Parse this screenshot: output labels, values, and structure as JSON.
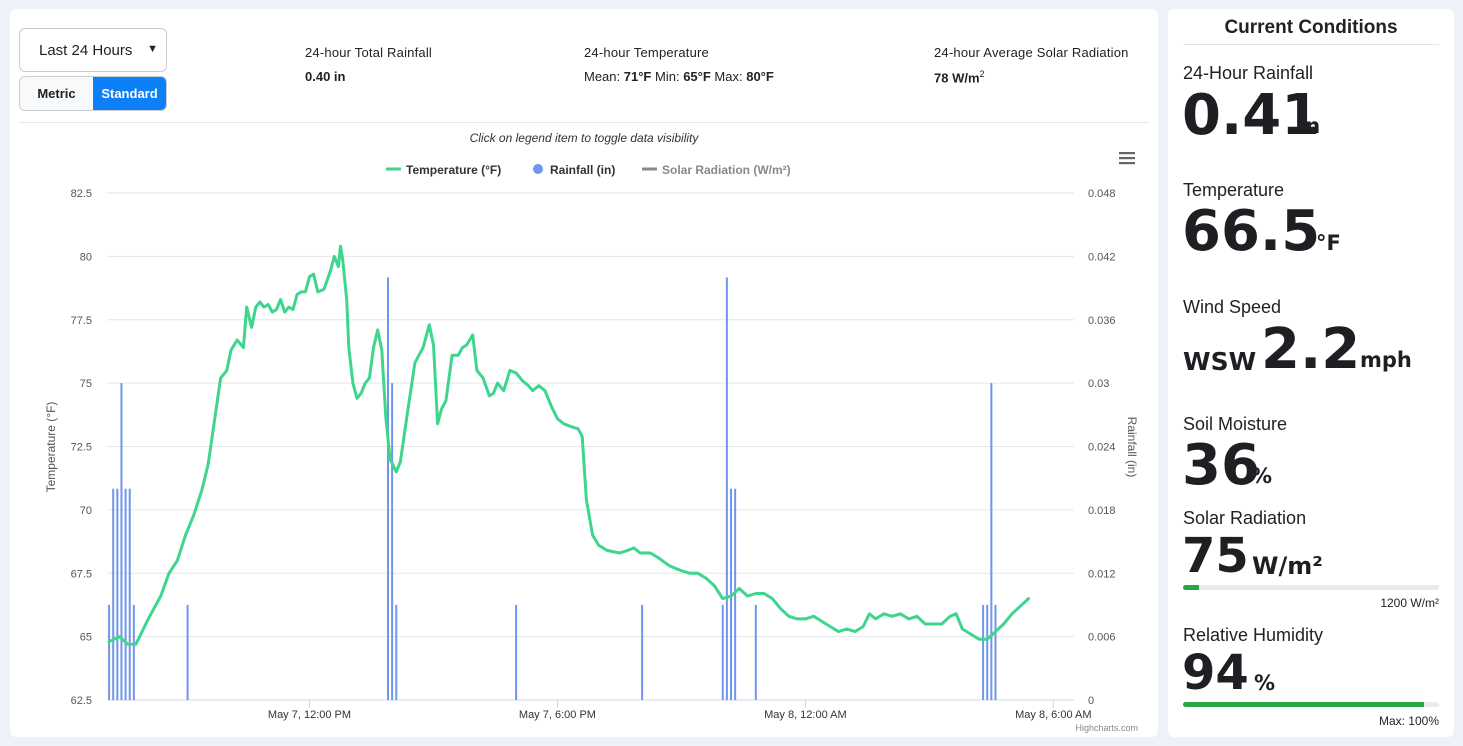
{
  "controls": {
    "range_value": "Last 24 Hours",
    "unit_metric": "Metric",
    "unit_standard": "Standard",
    "active_unit": "Standard"
  },
  "summary": {
    "rain_label": "24-hour Total Rainfall",
    "rain_value": "0.40 in",
    "temp_label": "24-hour Temperature",
    "temp_mean_label": "Mean:",
    "temp_mean": "71°F",
    "temp_min_label": "Min:",
    "temp_min": "65°F",
    "temp_max_label": "Max:",
    "temp_max": "80°F",
    "solar_label": "24-hour Average Solar Radiation",
    "solar_value": "78 W/m",
    "solar_exp": "2"
  },
  "chart_data": {
    "type": "line",
    "hint": "Click on legend item to toggle data visibility",
    "legend": [
      {
        "name": "Temperature (°F)",
        "color": "#3dd68c",
        "symbol": "line",
        "visible": true
      },
      {
        "name": "Rainfall (in)",
        "color": "#6f95ee",
        "symbol": "dot",
        "visible": true
      },
      {
        "name": "Solar Radiation (W/m²)",
        "color": "#888888",
        "symbol": "line",
        "visible": false
      }
    ],
    "ylabel_left": "Temperature (°F)",
    "ylabel_right": "Rainfall (in)",
    "y_left_ticks": [
      "82.5",
      "80",
      "77.5",
      "75",
      "72.5",
      "70",
      "67.5",
      "65",
      "62.5"
    ],
    "y_right_ticks": [
      "0.048",
      "0.042",
      "0.036",
      "0.03",
      "0.024",
      "0.018",
      "0.012",
      "0.006",
      "0"
    ],
    "ylim_left": [
      62.5,
      82.5
    ],
    "ylim_right": [
      0,
      0.048
    ],
    "x_ticks": [
      "May 7, 12:00 PM",
      "May 7, 6:00 PM",
      "May 8, 12:00 AM",
      "May 8, 6:00 AM"
    ],
    "x_tick_hours": [
      0,
      6,
      12,
      18
    ],
    "xlim_hours": [
      -4.9,
      18.5
    ],
    "credit": "Highcharts.com",
    "temperature": [
      [
        -4.85,
        64.8
      ],
      [
        -4.6,
        65.0
      ],
      [
        -4.4,
        64.7
      ],
      [
        -4.2,
        64.7
      ],
      [
        -3.9,
        65.7
      ],
      [
        -3.6,
        66.6
      ],
      [
        -3.4,
        67.5
      ],
      [
        -3.2,
        68.0
      ],
      [
        -3.0,
        69.0
      ],
      [
        -2.8,
        69.8
      ],
      [
        -2.6,
        70.8
      ],
      [
        -2.45,
        71.8
      ],
      [
        -2.3,
        73.5
      ],
      [
        -2.15,
        75.2
      ],
      [
        -2.0,
        75.5
      ],
      [
        -1.9,
        76.3
      ],
      [
        -1.75,
        76.7
      ],
      [
        -1.6,
        76.4
      ],
      [
        -1.52,
        78.0
      ],
      [
        -1.4,
        77.2
      ],
      [
        -1.3,
        78.0
      ],
      [
        -1.2,
        78.2
      ],
      [
        -1.1,
        78.0
      ],
      [
        -1.0,
        78.1
      ],
      [
        -0.9,
        77.8
      ],
      [
        -0.8,
        77.9
      ],
      [
        -0.7,
        78.3
      ],
      [
        -0.6,
        77.8
      ],
      [
        -0.5,
        78.0
      ],
      [
        -0.4,
        77.9
      ],
      [
        -0.3,
        78.5
      ],
      [
        -0.2,
        78.6
      ],
      [
        -0.1,
        78.6
      ],
      [
        0.0,
        79.2
      ],
      [
        0.1,
        79.3
      ],
      [
        0.2,
        78.6
      ],
      [
        0.35,
        78.7
      ],
      [
        0.5,
        79.4
      ],
      [
        0.6,
        80.0
      ],
      [
        0.7,
        79.6
      ],
      [
        0.75,
        80.4
      ],
      [
        0.8,
        79.9
      ],
      [
        0.9,
        78.3
      ],
      [
        0.95,
        76.4
      ],
      [
        1.05,
        75.0
      ],
      [
        1.15,
        74.4
      ],
      [
        1.25,
        74.6
      ],
      [
        1.35,
        75.0
      ],
      [
        1.45,
        75.2
      ],
      [
        1.55,
        76.4
      ],
      [
        1.65,
        77.1
      ],
      [
        1.75,
        76.3
      ],
      [
        1.85,
        73.6
      ],
      [
        1.95,
        72.0
      ],
      [
        2.1,
        71.5
      ],
      [
        2.2,
        71.9
      ],
      [
        2.35,
        73.6
      ],
      [
        2.55,
        75.8
      ],
      [
        2.75,
        76.4
      ],
      [
        2.9,
        77.3
      ],
      [
        3.0,
        76.5
      ],
      [
        3.1,
        73.4
      ],
      [
        3.2,
        74.0
      ],
      [
        3.3,
        74.3
      ],
      [
        3.45,
        76.1
      ],
      [
        3.6,
        76.1
      ],
      [
        3.7,
        76.4
      ],
      [
        3.8,
        76.5
      ],
      [
        3.95,
        76.9
      ],
      [
        4.05,
        75.5
      ],
      [
        4.2,
        75.2
      ],
      [
        4.35,
        74.5
      ],
      [
        4.45,
        74.6
      ],
      [
        4.55,
        75.0
      ],
      [
        4.7,
        74.7
      ],
      [
        4.85,
        75.5
      ],
      [
        5.0,
        75.4
      ],
      [
        5.15,
        75.1
      ],
      [
        5.3,
        74.9
      ],
      [
        5.4,
        74.7
      ],
      [
        5.55,
        74.9
      ],
      [
        5.7,
        74.7
      ],
      [
        5.85,
        74.1
      ],
      [
        6.0,
        73.6
      ],
      [
        6.15,
        73.4
      ],
      [
        6.3,
        73.3
      ],
      [
        6.5,
        73.2
      ],
      [
        6.6,
        72.9
      ],
      [
        6.7,
        70.4
      ],
      [
        6.85,
        69.0
      ],
      [
        7.0,
        68.6
      ],
      [
        7.2,
        68.4
      ],
      [
        7.5,
        68.3
      ],
      [
        7.7,
        68.4
      ],
      [
        7.85,
        68.5
      ],
      [
        8.0,
        68.3
      ],
      [
        8.25,
        68.3
      ],
      [
        8.45,
        68.1
      ],
      [
        8.7,
        67.8
      ],
      [
        9.0,
        67.6
      ],
      [
        9.2,
        67.5
      ],
      [
        9.4,
        67.5
      ],
      [
        9.6,
        67.3
      ],
      [
        9.8,
        67.0
      ],
      [
        10.0,
        66.5
      ],
      [
        10.2,
        66.6
      ],
      [
        10.4,
        66.9
      ],
      [
        10.6,
        66.6
      ],
      [
        10.8,
        66.7
      ],
      [
        11.0,
        66.7
      ],
      [
        11.2,
        66.5
      ],
      [
        11.4,
        66.1
      ],
      [
        11.6,
        65.8
      ],
      [
        11.8,
        65.7
      ],
      [
        12.0,
        65.7
      ],
      [
        12.2,
        65.8
      ],
      [
        12.4,
        65.6
      ],
      [
        12.6,
        65.4
      ],
      [
        12.8,
        65.2
      ],
      [
        13.0,
        65.3
      ],
      [
        13.2,
        65.2
      ],
      [
        13.4,
        65.4
      ],
      [
        13.55,
        65.9
      ],
      [
        13.7,
        65.7
      ],
      [
        13.9,
        65.9
      ],
      [
        14.1,
        65.8
      ],
      [
        14.3,
        65.9
      ],
      [
        14.5,
        65.7
      ],
      [
        14.7,
        65.8
      ],
      [
        14.9,
        65.5
      ],
      [
        15.1,
        65.5
      ],
      [
        15.3,
        65.5
      ],
      [
        15.5,
        65.8
      ],
      [
        15.65,
        65.9
      ],
      [
        15.8,
        65.3
      ],
      [
        16.0,
        65.1
      ],
      [
        16.2,
        64.9
      ],
      [
        16.4,
        64.9
      ],
      [
        16.6,
        65.2
      ],
      [
        16.8,
        65.5
      ],
      [
        17.0,
        65.9
      ],
      [
        17.2,
        66.2
      ],
      [
        17.4,
        66.5
      ]
    ],
    "rainfall": [
      [
        -4.85,
        0.009
      ],
      [
        -4.75,
        0.02
      ],
      [
        -4.65,
        0.02
      ],
      [
        -4.55,
        0.03
      ],
      [
        -4.45,
        0.02
      ],
      [
        -4.35,
        0.02
      ],
      [
        -4.25,
        0.009
      ],
      [
        -2.95,
        0.009
      ],
      [
        1.9,
        0.04
      ],
      [
        2.0,
        0.03
      ],
      [
        2.1,
        0.009
      ],
      [
        5.0,
        0.009
      ],
      [
        8.05,
        0.009
      ],
      [
        10.0,
        0.009
      ],
      [
        10.1,
        0.04
      ],
      [
        10.2,
        0.02
      ],
      [
        10.3,
        0.02
      ],
      [
        10.8,
        0.009
      ],
      [
        16.3,
        0.009
      ],
      [
        16.4,
        0.009
      ],
      [
        16.5,
        0.03
      ],
      [
        16.6,
        0.009
      ]
    ]
  },
  "conditions": {
    "title": "Current Conditions",
    "rain_label": "24-Hour Rainfall",
    "rain_value": "0.41",
    "rain_unit": "in",
    "temp_label": "Temperature",
    "temp_value": "66.5",
    "temp_unit": "°F",
    "wind_label": "Wind Speed",
    "wind_dir": "WSW",
    "wind_value": "2.2",
    "wind_unit": "mph",
    "soil_label": "Soil Moisture",
    "soil_value": "36",
    "soil_unit": "%",
    "solar_label": "Solar Radiation",
    "solar_value": "75",
    "solar_unit": "W/m²",
    "solar_max_label": "1200 W/m²",
    "solar_fraction": 0.0625,
    "humidity_label": "Relative Humidity",
    "humidity_value": "94",
    "humidity_unit": "%",
    "humidity_max_label": "Max: 100%",
    "humidity_fraction": 0.94,
    "bar_color": "#28a745"
  }
}
